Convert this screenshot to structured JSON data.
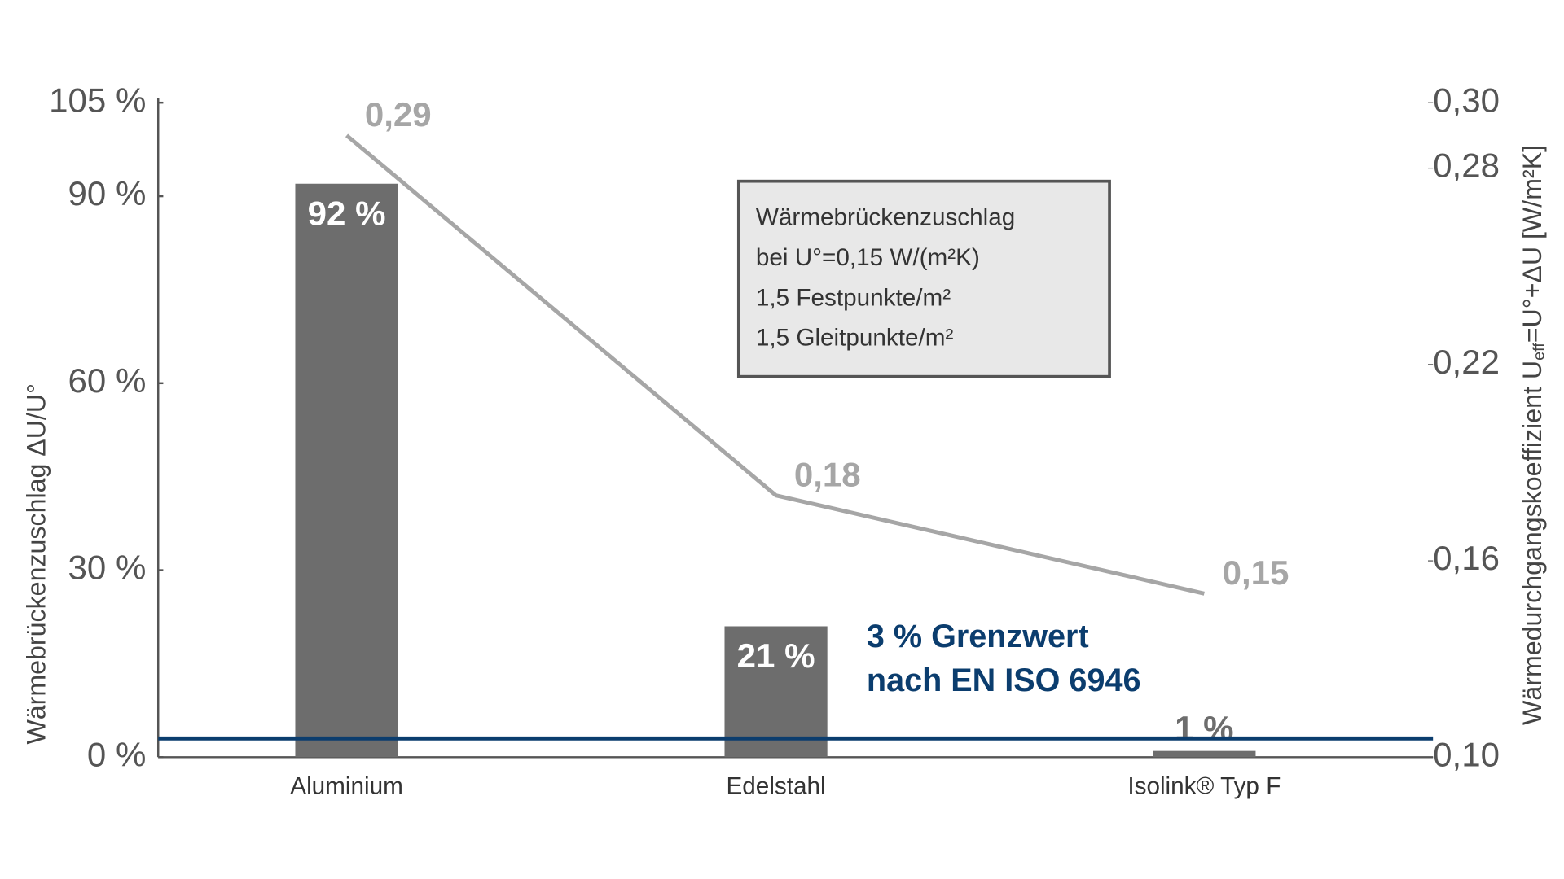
{
  "chart_data": {
    "type": "bar",
    "categories": [
      "Aluminium",
      "Edelstahl",
      "Isolink® Typ F"
    ],
    "series": [
      {
        "type": "bar",
        "color": "#6d6d6d",
        "values": [
          92,
          21,
          1
        ],
        "value_labels": [
          "92 %",
          "21 %",
          "1 %"
        ]
      },
      {
        "type": "line",
        "axis": "y2",
        "color": "#a6a6a6",
        "values": [
          0.29,
          0.18,
          0.15
        ],
        "value_labels": [
          "0,29",
          "0,18",
          "0,15"
        ]
      }
    ],
    "y_label": "Wärmebrückenzuschlag ΔU/U°",
    "y2_label": [
      "Wärmedurchgangskoeffizient U",
      "eff",
      "=U°+ΔU [W/m²K]"
    ],
    "ylim": [
      0,
      105
    ],
    "yticks": [
      {
        "value": 0,
        "label": "0 %"
      },
      {
        "value": 30,
        "label": "30 %"
      },
      {
        "value": 60,
        "label": "60 %"
      },
      {
        "value": 90,
        "label": "90 %"
      },
      {
        "value": 105,
        "label": "105 %"
      }
    ],
    "y2lim": [
      0.1,
      0.3
    ],
    "y2ticks": [
      {
        "value": 0.1,
        "label": "0,10"
      },
      {
        "value": 0.16,
        "label": "0,16"
      },
      {
        "value": 0.22,
        "label": "0,22"
      },
      {
        "value": 0.28,
        "label": "0,28"
      },
      {
        "value": 0.3,
        "label": "0,30"
      }
    ],
    "threshold": {
      "value": 3,
      "color": "#0b3d6e",
      "label": [
        "3 % Grenzwert",
        "nach EN ISO 6946"
      ]
    },
    "info_box": [
      "Wärmebrückenzuschlag",
      "bei U°=0,15 W/(m²K)",
      "1,5 Festpunkte/m²",
      "1,5 Gleitpunkte/m²"
    ]
  }
}
